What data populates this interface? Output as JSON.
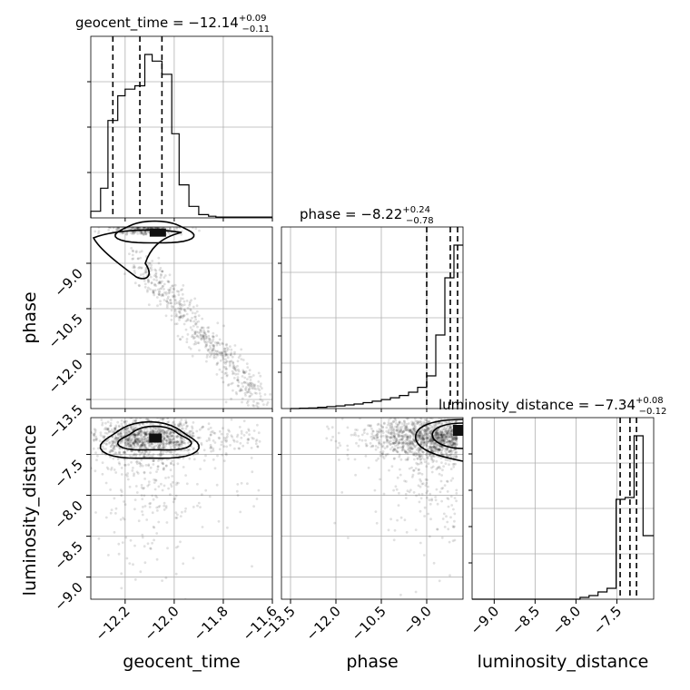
{
  "chart_data": {
    "type": "corner",
    "parameters": [
      "geocent_time",
      "phase",
      "luminosity_distance"
    ],
    "titles": [
      {
        "param": "geocent_time",
        "prefix": "geocent_time = ",
        "median": "−12.14",
        "plus": "+0.09",
        "minus": "−0.11"
      },
      {
        "param": "phase",
        "prefix": "phase = ",
        "median": "−8.22",
        "plus": "+0.24",
        "minus": "−0.78"
      },
      {
        "param": "luminosity_distance",
        "prefix": "luminosity_distance = ",
        "median": "−7.34",
        "plus": "+0.08",
        "minus": "−0.12"
      }
    ],
    "axes": {
      "geocent_time": {
        "range": [
          -12.34,
          -11.6
        ],
        "ticks": [
          -12.2,
          -12.0,
          -11.8,
          -11.6
        ],
        "tick_labels": [
          "−12.2",
          "−12.0",
          "−11.8",
          "−11.6"
        ]
      },
      "phase": {
        "range": [
          -13.8,
          -7.8
        ],
        "ticks": [
          -13.5,
          -12.0,
          -10.5,
          -9.0
        ],
        "tick_labels": [
          "−13.5",
          "−12.0",
          "−10.5",
          "−9.0"
        ]
      },
      "luminosity_distance": {
        "range": [
          -9.27,
          -7.05
        ],
        "ticks": [
          -9.0,
          -8.5,
          -8.0,
          -7.5
        ],
        "tick_labels": [
          "−9.0",
          "−8.5",
          "−8.0",
          "−7.5"
        ]
      }
    },
    "histograms": [
      {
        "param": "geocent_time",
        "bins": [
          -12.34,
          -12.3,
          -12.27,
          -12.23,
          -12.2,
          -12.16,
          -12.12,
          -12.09,
          -12.05,
          -12.01,
          -11.98,
          -11.94,
          -11.9,
          -11.86,
          -11.83,
          -11.79,
          -11.75,
          -11.72,
          -11.68,
          -11.64,
          -11.6
        ],
        "counts": [
          0.04,
          0.18,
          0.59,
          0.74,
          0.78,
          0.8,
          0.99,
          0.95,
          0.87,
          0.51,
          0.2,
          0.07,
          0.02,
          0.01,
          0.005,
          0.005,
          0.005,
          0.005,
          0.005,
          0.005
        ],
        "quantiles": [
          -12.25,
          -12.14,
          -12.05
        ]
      },
      {
        "param": "phase",
        "bins": [
          -13.5,
          -13.2,
          -12.9,
          -12.6,
          -12.3,
          -12.0,
          -11.7,
          -11.4,
          -11.1,
          -10.8,
          -10.5,
          -10.2,
          -9.9,
          -9.6,
          -9.3,
          -9.0,
          -8.7,
          -8.4,
          -8.1,
          -7.8
        ],
        "counts": [
          0.0,
          0.002,
          0.004,
          0.008,
          0.012,
          0.016,
          0.022,
          0.028,
          0.036,
          0.045,
          0.055,
          0.066,
          0.08,
          0.1,
          0.13,
          0.2,
          0.45,
          0.8,
          1.0
        ],
        "quantiles": [
          -9.0,
          -8.22,
          -7.98
        ]
      },
      {
        "param": "luminosity_distance",
        "bins": [
          -9.27,
          -9.16,
          -9.05,
          -8.94,
          -8.83,
          -8.72,
          -8.61,
          -8.5,
          -8.39,
          -8.28,
          -8.17,
          -8.06,
          -7.95,
          -7.84,
          -7.73,
          -7.62,
          -7.51,
          -7.4,
          -7.29,
          -7.18,
          -7.05
        ],
        "counts": [
          0.0,
          0.0,
          0.0,
          0.0,
          0.0,
          0.0,
          0.0,
          0.0,
          0.0,
          0.0,
          0.0,
          0.0,
          0.01,
          0.02,
          0.04,
          0.06,
          0.55,
          0.56,
          0.9,
          0.35
        ],
        "quantiles": [
          -7.46,
          -7.34,
          -7.26
        ]
      }
    ],
    "scatter_panels": [
      {
        "x": "geocent_time",
        "y": "phase",
        "density_center": [
          -12.06,
          -8.0
        ],
        "trend": "phase decreases toward -13.5 as geocent_time increases"
      },
      {
        "x": "geocent_time",
        "y": "luminosity_distance",
        "density_center": [
          -12.1,
          -7.3
        ]
      },
      {
        "x": "phase",
        "y": "luminosity_distance",
        "density_center": [
          -8.0,
          -7.3
        ]
      }
    ],
    "grid": true
  }
}
